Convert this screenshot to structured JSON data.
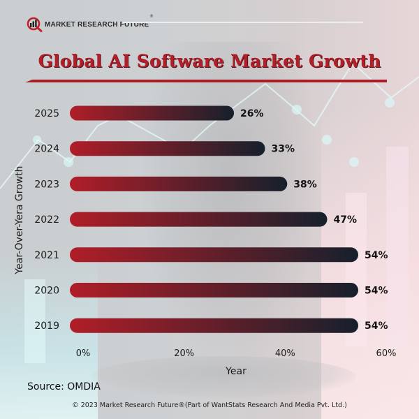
{
  "brand": {
    "logo_text": "MARKET RESEARCH FUTURE",
    "registered_mark": "®"
  },
  "title": "Global AI Software Market Growth",
  "colors": {
    "title": "#b0202a",
    "bar_start": "#b01e28",
    "bar_end": "#16202c",
    "accent_rule": "#a81e26"
  },
  "chart_data": {
    "type": "bar",
    "orientation": "horizontal",
    "title": "Global AI Software Market Growth",
    "xlabel": "Year",
    "ylabel": "Year-Over-Yera Growth",
    "categories": [
      "2025",
      "2024",
      "2023",
      "2022",
      "2021",
      "2020",
      "2019"
    ],
    "values": [
      26,
      33,
      38,
      47,
      54,
      54,
      54
    ],
    "value_labels": [
      "26%",
      "33%",
      "38%",
      "47%",
      "54%",
      "54%",
      "54%"
    ],
    "x_ticks": [
      0,
      20,
      40,
      60
    ],
    "x_tick_labels": [
      "0%",
      "20%",
      "40%",
      "60%"
    ],
    "xlim": [
      0,
      60
    ],
    "grid": false,
    "legend": "none"
  },
  "source": "Source: OMDIA",
  "copyright": "© 2023 Market Research Future®(Part of WantStats Research And Media Pvt. Ltd.)"
}
